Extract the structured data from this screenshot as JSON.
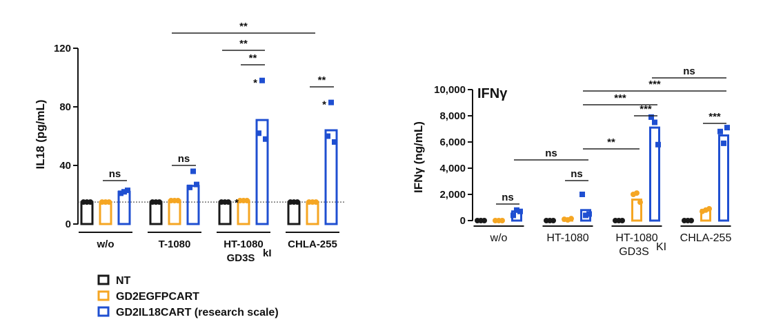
{
  "colors": {
    "NT": "#1a1a1a",
    "GD2EGFPCART": "#f5a623",
    "GD2IL18CART": "#1f4fd1"
  },
  "legend": {
    "items": [
      "NT",
      "GD2EGFPCART",
      "GD2IL18CART (research scale)"
    ]
  },
  "chart_data": [
    {
      "type": "bar",
      "title": "",
      "ylabel": "IL18 (pg/mL)",
      "ylim": [
        0,
        120
      ],
      "yticks": [
        "0",
        "40",
        "80",
        "120"
      ],
      "ytick_values": [
        0,
        40,
        80,
        120
      ],
      "categories": [
        "w/o",
        "T-1080",
        "HT-1080",
        "CHLA-255"
      ],
      "category_sublabels": [
        "",
        "",
        "GD3S",
        ""
      ],
      "category_superscripts": [
        "",
        "",
        "kI",
        ""
      ],
      "detection_limit": 15,
      "series": [
        {
          "name": "NT",
          "values": [
            15,
            15,
            15,
            15
          ],
          "points": [
            [
              15,
              15,
              15
            ],
            [
              15,
              15,
              15
            ],
            [
              15,
              15,
              15
            ],
            [
              15,
              15,
              15
            ]
          ]
        },
        {
          "name": "GD2EGFPCART",
          "values": [
            15,
            16,
            16,
            15
          ],
          "points": [
            [
              15,
              15,
              15
            ],
            [
              16,
              16,
              16
            ],
            [
              16,
              16,
              16
            ],
            [
              15,
              15,
              15
            ]
          ]
        },
        {
          "name": "GD2IL18CART (research scale)",
          "values": [
            22,
            26,
            71,
            64
          ],
          "points": [
            [
              21,
              23,
              22
            ],
            [
              25,
              27,
              36
            ],
            [
              62,
              58,
              98
            ],
            [
              60,
              56,
              83
            ]
          ]
        }
      ],
      "significance": [
        {
          "label": "ns",
          "from": [
            0,
            1
          ],
          "to": [
            0,
            2
          ]
        },
        {
          "label": "ns",
          "from": [
            1,
            1
          ],
          "to": [
            1,
            2
          ]
        },
        {
          "label": "**",
          "from": [
            2,
            1
          ],
          "to": [
            2,
            2
          ]
        },
        {
          "label": "**",
          "from": [
            2,
            0
          ],
          "to": [
            2,
            2
          ]
        },
        {
          "label": "**",
          "from": [
            1,
            1
          ],
          "to": [
            3,
            1
          ]
        },
        {
          "label": "**",
          "from": [
            3,
            1
          ],
          "to": [
            3,
            2
          ]
        }
      ],
      "point_stars": [
        {
          "label": "*",
          "category": 2,
          "series": 1
        },
        {
          "label": "*",
          "category": 2,
          "series": 2
        },
        {
          "label": "*",
          "category": 3,
          "series": 2
        }
      ]
    },
    {
      "type": "bar",
      "title": "IFNγ",
      "ylabel": "IFNγ (ng/mL)",
      "ylim": [
        0,
        10000
      ],
      "yticks": [
        "0",
        "2,000",
        "4,000",
        "6,000",
        "8,000",
        "10,000"
      ],
      "ytick_values": [
        0,
        2000,
        4000,
        6000,
        8000,
        10000
      ],
      "categories": [
        "w/o",
        "HT-1080",
        "HT-1080",
        "CHLA-255"
      ],
      "category_sublabels": [
        "",
        "",
        "GD3S",
        ""
      ],
      "category_superscripts": [
        "",
        "",
        "KI",
        ""
      ],
      "series": [
        {
          "name": "NT",
          "values": [
            0,
            0,
            0,
            0
          ],
          "points": [
            [
              0,
              0,
              0
            ],
            [
              0,
              0,
              0
            ],
            [
              0,
              0,
              0
            ],
            [
              0,
              0,
              0
            ]
          ]
        },
        {
          "name": "GD2EGFPCART",
          "values": [
            0,
            100,
            1600,
            800
          ],
          "points": [
            [
              0,
              0,
              0
            ],
            [
              100,
              150,
              50
            ],
            [
              2000,
              1400,
              2100
            ],
            [
              700,
              900,
              800
            ]
          ]
        },
        {
          "name": "GD2IL18CART (research scale)",
          "values": [
            700,
            800,
            7100,
            6500
          ],
          "points": [
            [
              400,
              700,
              800
            ],
            [
              2000,
              500,
              400
            ],
            [
              7900,
              5800,
              7500
            ],
            [
              6800,
              7100,
              5900
            ]
          ]
        }
      ],
      "significance": [
        {
          "label": "ns",
          "from": [
            0,
            1
          ],
          "to": [
            0,
            2
          ]
        },
        {
          "label": "ns",
          "from": [
            0,
            2
          ],
          "to": [
            1,
            2
          ]
        },
        {
          "label": "ns",
          "from": [
            1,
            1
          ],
          "to": [
            1,
            2
          ]
        },
        {
          "label": "**",
          "from": [
            1,
            2
          ],
          "to": [
            2,
            1
          ]
        },
        {
          "label": "***",
          "from": [
            2,
            1
          ],
          "to": [
            2,
            2
          ]
        },
        {
          "label": "***",
          "from": [
            1,
            2
          ],
          "to": [
            2,
            2
          ]
        },
        {
          "label": "***",
          "from": [
            1,
            2
          ],
          "to": [
            3,
            2
          ]
        },
        {
          "label": "ns",
          "from": [
            2,
            2
          ],
          "to": [
            3,
            2
          ]
        },
        {
          "label": "***",
          "from": [
            3,
            1
          ],
          "to": [
            3,
            2
          ]
        }
      ]
    }
  ]
}
